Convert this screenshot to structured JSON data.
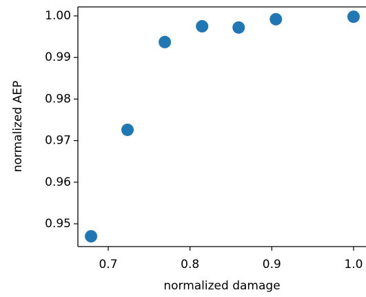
{
  "chart_data": {
    "type": "scatter",
    "x_label": "normalized damage",
    "y_label": "normalized AEP",
    "x": [
      0.679,
      0.7236,
      0.7692,
      0.8148,
      0.8595,
      0.905,
      1.0
    ],
    "y": [
      0.947,
      0.9726,
      0.9937,
      0.9975,
      0.9972,
      0.9992,
      0.9998
    ],
    "color": "#1f77b4",
    "xlim": [
      0.6629,
      1.0152
    ],
    "ylim": [
      0.94452,
      1.00216
    ],
    "xticks": [
      0.7,
      0.8,
      0.9,
      {
        "value": 1.0,
        "label": "1.0"
      }
    ],
    "yticks": [
      0.95,
      0.96,
      0.97,
      0.98,
      0.99,
      {
        "value": 1.0,
        "label": "1.00"
      }
    ]
  }
}
